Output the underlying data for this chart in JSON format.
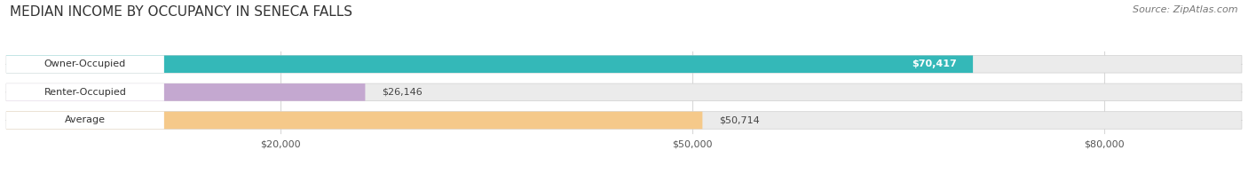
{
  "title": "MEDIAN INCOME BY OCCUPANCY IN SENECA FALLS",
  "source": "Source: ZipAtlas.com",
  "categories": [
    "Owner-Occupied",
    "Renter-Occupied",
    "Average"
  ],
  "values": [
    70417,
    26146,
    50714
  ],
  "bar_colors": [
    "#34b8b8",
    "#c4a8d0",
    "#f5c98a"
  ],
  "value_labels": [
    "$70,417",
    "$26,146",
    "$50,714"
  ],
  "xlim": [
    0,
    90000
  ],
  "xticks": [
    20000,
    50000,
    80000
  ],
  "xticklabels": [
    "$20,000",
    "$50,000",
    "$80,000"
  ],
  "bar_height": 0.62,
  "figsize": [
    14.06,
    1.96
  ],
  "dpi": 100,
  "background_color": "#ffffff",
  "bar_bg_color": "#ebebeb",
  "title_fontsize": 11,
  "source_fontsize": 8,
  "label_fontsize": 8,
  "tick_fontsize": 8,
  "label_bg_color": "#ffffff",
  "grid_color": "#d8d8d8"
}
